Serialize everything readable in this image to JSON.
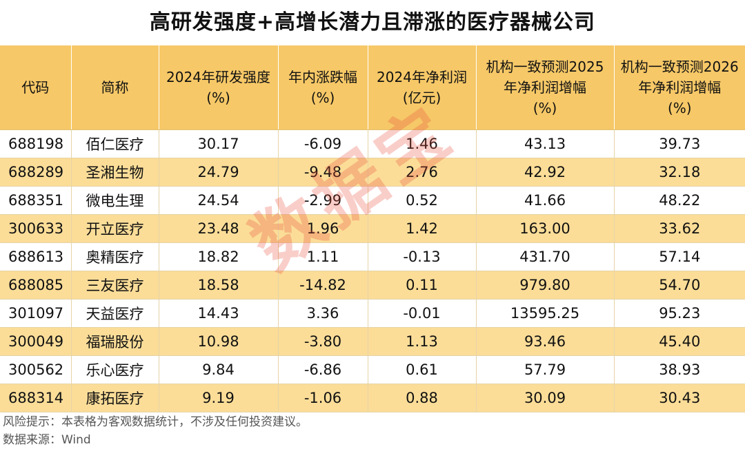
{
  "title": "高研发强度+高增长潜力且滞涨的医疗器械公司",
  "table": {
    "headers": [
      "代码",
      "简称",
      "2024年研发强度\n(%)",
      "年内涨跌幅\n(%)",
      "2024年净利润\n(亿元)",
      "机构一致预测2025\n年净利润增幅\n(%)",
      "机构一致预测2026\n年净利润增幅\n(%)"
    ],
    "rows": [
      [
        "688198",
        "佰仁医疗",
        "30.17",
        "-6.09",
        "1.46",
        "43.13",
        "39.73"
      ],
      [
        "688289",
        "圣湘生物",
        "24.79",
        "-9.48",
        "2.76",
        "42.92",
        "32.18"
      ],
      [
        "688351",
        "微电生理",
        "24.54",
        "-2.99",
        "0.52",
        "41.66",
        "48.22"
      ],
      [
        "300633",
        "开立医疗",
        "23.48",
        "1.96",
        "1.42",
        "163.00",
        "33.62"
      ],
      [
        "688613",
        "奥精医疗",
        "18.82",
        "1.11",
        "-0.13",
        "431.70",
        "57.14"
      ],
      [
        "688085",
        "三友医疗",
        "18.58",
        "-14.82",
        "0.11",
        "979.80",
        "54.70"
      ],
      [
        "301097",
        "天益医疗",
        "14.43",
        "3.36",
        "-0.01",
        "13595.25",
        "95.23"
      ],
      [
        "300049",
        "福瑞股份",
        "10.98",
        "-3.80",
        "1.13",
        "93.46",
        "45.40"
      ],
      [
        "300562",
        "乐心医疗",
        "9.84",
        "-6.86",
        "0.61",
        "57.79",
        "38.93"
      ],
      [
        "688314",
        "康拓医疗",
        "9.19",
        "-1.06",
        "0.88",
        "30.09",
        "30.43"
      ]
    ]
  },
  "footer": {
    "risk_note": "风险提示：本表格为客观数据统计，不涉及任何投资建议。",
    "source": "数据来源：Wind"
  },
  "watermark": "数据宝",
  "colors": {
    "header_bg": "#f6c867",
    "stripe_bg": "#fbdd98",
    "watermark": "#eb503c"
  }
}
